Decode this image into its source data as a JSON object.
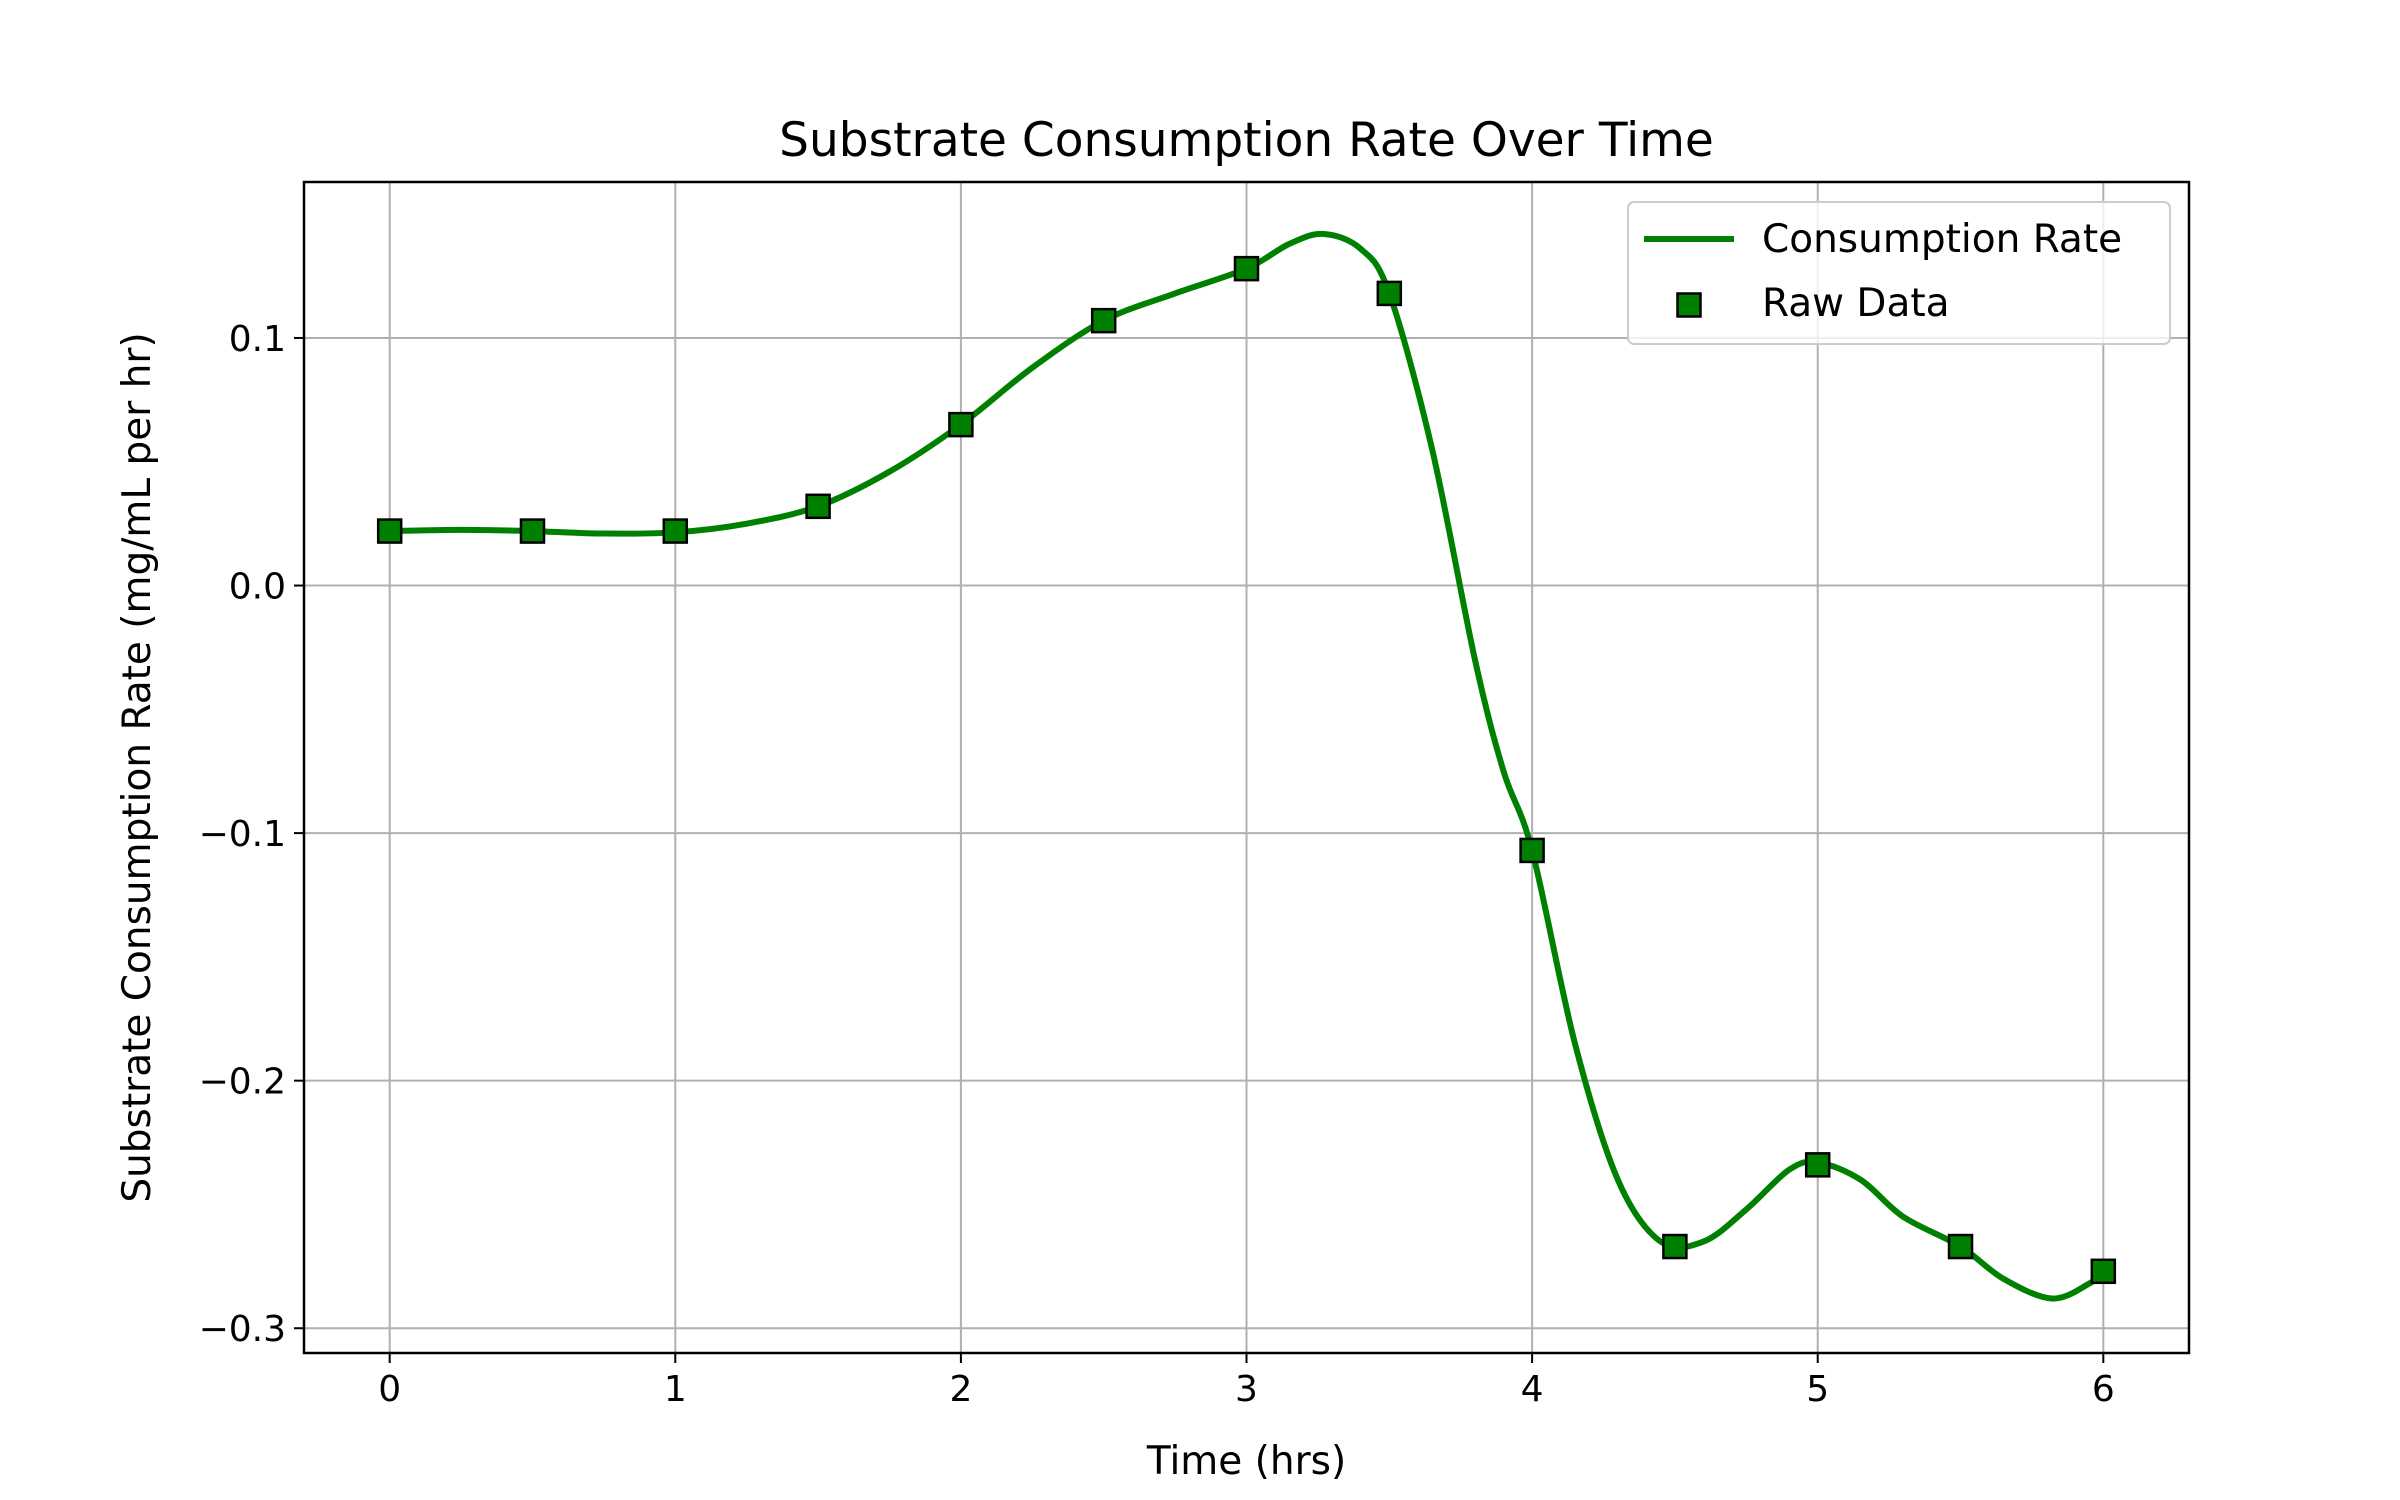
{
  "chart_data": {
    "type": "line",
    "title": "Substrate Consumption Rate Over Time",
    "xlabel": "Time (hrs)",
    "ylabel": "Substrate Consumption Rate (mg/mL per hr)",
    "xlim": [
      -0.3,
      6.3
    ],
    "ylim": [
      -0.31,
      0.163
    ],
    "x_ticks": [
      0,
      1,
      2,
      3,
      4,
      5,
      6
    ],
    "x_tick_labels": [
      "0",
      "1",
      "2",
      "3",
      "4",
      "5",
      "6"
    ],
    "y_ticks": [
      -0.3,
      -0.2,
      -0.1,
      0.0,
      0.1
    ],
    "y_tick_labels": [
      "−0.3",
      "−0.2",
      "−0.1",
      "0.0",
      "0.1"
    ],
    "grid": true,
    "legend_position": "top-right",
    "series": [
      {
        "name": "Consumption Rate",
        "kind": "line",
        "color": "#008000",
        "x": [
          0,
          0.25,
          0.5,
          0.75,
          1.0,
          1.25,
          1.5,
          1.75,
          2.0,
          2.25,
          2.5,
          2.75,
          3.0,
          3.15,
          3.27,
          3.4,
          3.5,
          3.65,
          3.8,
          3.9,
          4.0,
          4.15,
          4.3,
          4.45,
          4.6,
          4.75,
          4.9,
          5.0,
          5.15,
          5.3,
          5.5,
          5.65,
          5.82,
          5.95,
          6.0
        ],
        "y": [
          0.022,
          0.0225,
          0.022,
          0.021,
          0.0215,
          0.025,
          0.032,
          0.046,
          0.065,
          0.088,
          0.107,
          0.118,
          0.128,
          0.138,
          0.142,
          0.136,
          0.118,
          0.055,
          -0.03,
          -0.075,
          -0.107,
          -0.185,
          -0.24,
          -0.265,
          -0.265,
          -0.252,
          -0.236,
          -0.233,
          -0.24,
          -0.255,
          -0.267,
          -0.28,
          -0.288,
          -0.282,
          -0.277
        ]
      },
      {
        "name": "Raw Data",
        "kind": "scatter",
        "marker": "square",
        "color": "#008000",
        "edge_color": "#000000",
        "x": [
          0,
          0.5,
          1.0,
          1.5,
          2.0,
          2.5,
          3.0,
          3.5,
          4.0,
          4.5,
          5.0,
          5.5,
          6.0
        ],
        "y": [
          0.022,
          0.022,
          0.022,
          0.032,
          0.065,
          0.107,
          0.128,
          0.118,
          -0.107,
          -0.267,
          -0.234,
          -0.267,
          -0.277
        ]
      }
    ]
  }
}
